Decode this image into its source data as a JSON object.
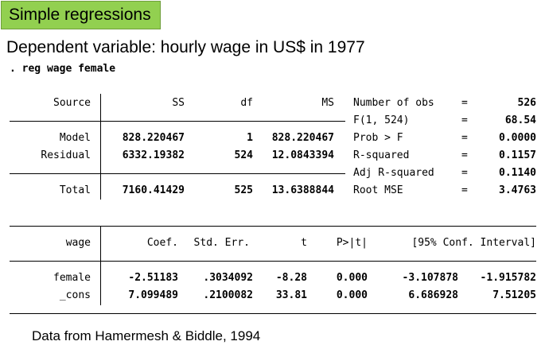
{
  "slide": {
    "title": "Simple regressions",
    "subtitle": "Dependent variable: hourly wage in US$ in 1977",
    "footer": "Data from Hamermesh & Biddle, 1994"
  },
  "stata": {
    "command": ". reg wage female",
    "anova": {
      "headers": {
        "source": "Source",
        "ss": "SS",
        "df": "df",
        "ms": "MS"
      },
      "rows": [
        {
          "source": "Model",
          "ss": "828.220467",
          "df": "1",
          "ms": "828.220467"
        },
        {
          "source": "Residual",
          "ss": "6332.19382",
          "df": "524",
          "ms": "12.0843394"
        },
        {
          "source": "Total",
          "ss": "7160.41429",
          "df": "525",
          "ms": "13.6388844"
        }
      ]
    },
    "stats": [
      {
        "label": "Number of obs",
        "eq": "=",
        "value": "526"
      },
      {
        "label": "F(1, 524)",
        "eq": "=",
        "value": "68.54"
      },
      {
        "label": "Prob > F",
        "eq": "=",
        "value": "0.0000"
      },
      {
        "label": "R-squared",
        "eq": "=",
        "value": "0.1157"
      },
      {
        "label": "Adj R-squared",
        "eq": "=",
        "value": "0.1140"
      },
      {
        "label": "Root MSE",
        "eq": "=",
        "value": "3.4763"
      }
    ],
    "coef": {
      "headers": {
        "var": "wage",
        "coef": "Coef.",
        "se": "Std. Err.",
        "t": "t",
        "p": "P>|t|",
        "ci": "[95% Conf. Interval]"
      },
      "rows": [
        {
          "var": "female",
          "coef": "-2.51183",
          "se": ".3034092",
          "t": "-8.28",
          "p": "0.000",
          "lo": "-3.107878",
          "hi": "-1.915782"
        },
        {
          "var": "_cons",
          "coef": "7.099489",
          "se": ".2100082",
          "t": "33.81",
          "p": "0.000",
          "lo": "6.686928",
          "hi": "7.51205"
        }
      ]
    }
  },
  "colors": {
    "title_bg": "#92d050"
  }
}
